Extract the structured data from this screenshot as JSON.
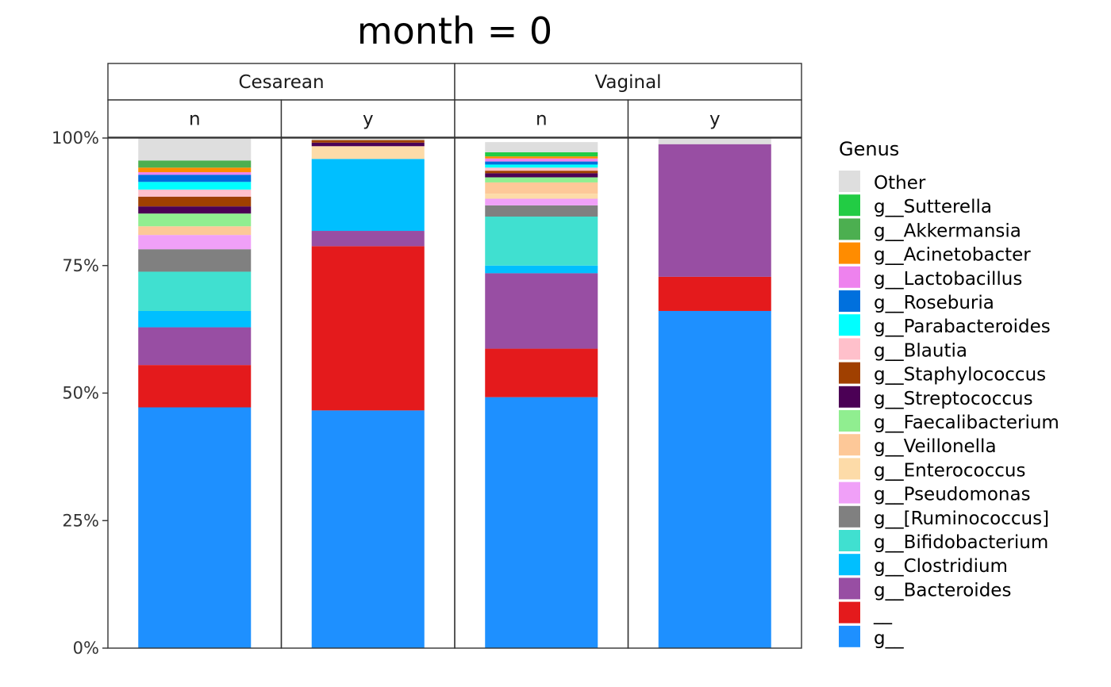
{
  "chart_data": {
    "type": "bar",
    "stacked": true,
    "normalized": true,
    "title": "month = 0",
    "facet_outer": [
      "Cesarean",
      "Vaginal"
    ],
    "facet_inner": [
      "n",
      "y"
    ],
    "y_ticks": [
      "0%",
      "25%",
      "50%",
      "75%",
      "100%"
    ],
    "ylim": [
      0,
      100
    ],
    "grid": false,
    "legend": {
      "title": "Genus",
      "position": "right"
    },
    "series": [
      {
        "name": "g__",
        "color": "#1E90FF",
        "values": [
          47.2,
          46.6,
          49.2,
          66.1
        ]
      },
      {
        "name": "__",
        "color": "#E41A1C",
        "values": [
          8.3,
          32.2,
          9.5,
          6.7
        ]
      },
      {
        "name": "g__Bacteroides",
        "color": "#984EA3",
        "values": [
          7.4,
          3.0,
          14.8,
          26.0
        ]
      },
      {
        "name": "g__Clostridium",
        "color": "#00BFFF",
        "values": [
          3.2,
          14.1,
          1.5,
          0.0
        ]
      },
      {
        "name": "g__Bifidobacterium",
        "color": "#40E0D0",
        "values": [
          7.7,
          0.0,
          9.6,
          0.0
        ]
      },
      {
        "name": "g__[Ruminococcus]",
        "color": "#808080",
        "values": [
          4.4,
          0.0,
          2.2,
          0.0
        ]
      },
      {
        "name": "g__Pseudomonas",
        "color": "#F0A0F8",
        "values": [
          2.8,
          0.0,
          1.3,
          0.0
        ]
      },
      {
        "name": "g__Enterococcus",
        "color": "#FDDBA8",
        "values": [
          0.0,
          2.5,
          1.0,
          0.0
        ]
      },
      {
        "name": "g__Veillonella",
        "color": "#FDC898",
        "values": [
          1.7,
          0.0,
          2.2,
          0.0
        ]
      },
      {
        "name": "g__Faecalibacterium",
        "color": "#90EE90",
        "values": [
          2.5,
          0.0,
          1.0,
          0.0
        ]
      },
      {
        "name": "g__Streptococcus",
        "color": "#4B0055",
        "values": [
          1.4,
          0.7,
          0.8,
          0.0
        ]
      },
      {
        "name": "g__Staphylococcus",
        "color": "#A04000",
        "values": [
          1.9,
          0.5,
          0.5,
          0.0
        ]
      },
      {
        "name": "g__Blautia",
        "color": "#FFC0CB",
        "values": [
          1.4,
          0.0,
          0.6,
          0.0
        ]
      },
      {
        "name": "g__Parabacteroides",
        "color": "#00FFFF",
        "values": [
          1.5,
          0.0,
          0.6,
          0.0
        ]
      },
      {
        "name": "g__Roseburia",
        "color": "#0070DD",
        "values": [
          1.4,
          0.0,
          0.6,
          0.0
        ]
      },
      {
        "name": "g__Lactobacillus",
        "color": "#EE82EE",
        "values": [
          0.5,
          0.0,
          0.6,
          0.0
        ]
      },
      {
        "name": "g__Acinetobacter",
        "color": "#FF8C00",
        "values": [
          0.9,
          0.0,
          0.4,
          0.0
        ]
      },
      {
        "name": "g__Akkermansia",
        "color": "#4CAF50",
        "values": [
          1.4,
          0.0,
          0.0,
          0.0
        ]
      },
      {
        "name": "g__Sutterella",
        "color": "#22CC44",
        "values": [
          0.0,
          0.0,
          0.8,
          0.0
        ]
      },
      {
        "name": "Other",
        "color": "#DEDEDE",
        "values": [
          4.4,
          0.4,
          2.0,
          1.2
        ]
      }
    ]
  }
}
